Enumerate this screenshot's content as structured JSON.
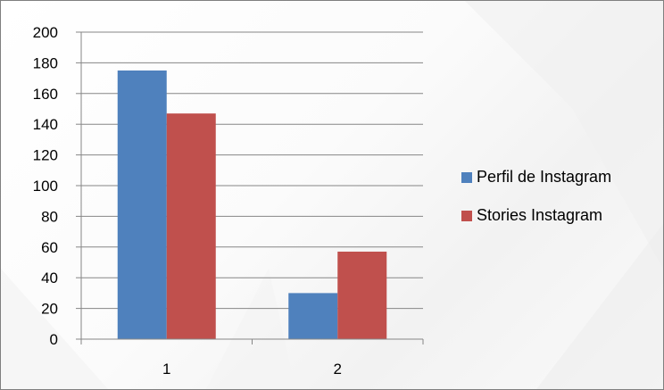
{
  "chart_data": {
    "type": "bar",
    "categories": [
      "1",
      "2"
    ],
    "series": [
      {
        "name": "Perfil de Instagram",
        "color": "#4f81bd",
        "values": [
          175,
          30
        ]
      },
      {
        "name": "Stories Instagram",
        "color": "#c0504d",
        "values": [
          147,
          57
        ]
      }
    ],
    "yticks": [
      "0",
      "20",
      "40",
      "60",
      "80",
      "100",
      "120",
      "140",
      "160",
      "180",
      "200"
    ],
    "ylim": [
      0,
      200
    ],
    "grid": true,
    "legend": "right",
    "title": "",
    "xlabel": "",
    "ylabel": ""
  }
}
